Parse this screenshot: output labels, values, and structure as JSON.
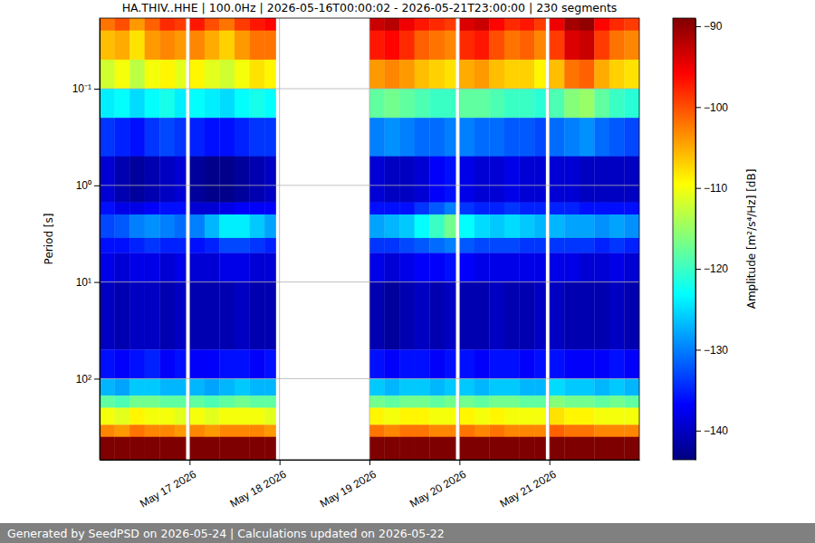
{
  "chart_data": {
    "type": "heatmap",
    "title": "HA.THIV..HHE | 100.0Hz | 2026-05-16T00:00:02 - 2026-05-21T23:00:00 | 230 segments",
    "ylabel": "Period [s]",
    "colorbar_label": "Amplitude [m²/s⁴/Hz] [dB]",
    "footer": "Generated by SeedPSD on 2026-05-24 | Calculations updated on 2026-05-22",
    "log": "y",
    "grid": true,
    "xlim": [
      "2026-05-16T00:00",
      "2026-05-22T00:00"
    ],
    "xticks": [
      {
        "value": "2026-05-17T00:00",
        "label": "May 17 2026"
      },
      {
        "value": "2026-05-18T00:00",
        "label": "May 18 2026"
      },
      {
        "value": "2026-05-19T00:00",
        "label": "May 19 2026"
      },
      {
        "value": "2026-05-20T00:00",
        "label": "May 20 2026"
      },
      {
        "value": "2026-05-21T00:00",
        "label": "May 21 2026"
      }
    ],
    "ylim": [
      0.0186,
      690
    ],
    "yticks": [
      {
        "value": 0.1,
        "label": "10⁻¹"
      },
      {
        "value": 1,
        "label": "10⁰"
      },
      {
        "value": 10,
        "label": "10¹"
      },
      {
        "value": 100,
        "label": "10²"
      }
    ],
    "clim": [
      -143.6,
      -89
    ],
    "cticks": [
      {
        "value": -140,
        "label": "−140"
      },
      {
        "value": -130,
        "label": "−130"
      },
      {
        "value": -120,
        "label": "−120"
      },
      {
        "value": -110,
        "label": "−110"
      },
      {
        "value": -100,
        "label": "−100"
      },
      {
        "value": -90,
        "label": "−90"
      }
    ],
    "x_edges": [
      "2026-05-16T00:00",
      "2026-05-16T04:00",
      "2026-05-16T08:00",
      "2026-05-16T12:00",
      "2026-05-16T16:00",
      "2026-05-16T20:00",
      "2026-05-16T23:00",
      "2026-05-17T00:00",
      "2026-05-17T04:00",
      "2026-05-17T08:00",
      "2026-05-17T12:00",
      "2026-05-17T16:00",
      "2026-05-17T20:00",
      "2026-05-17T23:00",
      "2026-05-19T00:00",
      "2026-05-19T04:00",
      "2026-05-19T08:00",
      "2026-05-19T12:00",
      "2026-05-19T16:00",
      "2026-05-19T20:00",
      "2026-05-19T23:00",
      "2026-05-20T00:00",
      "2026-05-20T04:00",
      "2026-05-20T08:00",
      "2026-05-20T12:00",
      "2026-05-20T16:00",
      "2026-05-20T20:00",
      "2026-05-20T23:00",
      "2026-05-21T00:00",
      "2026-05-21T04:00",
      "2026-05-21T08:00",
      "2026-05-21T12:00",
      "2026-05-21T16:00",
      "2026-05-21T20:00",
      "2026-05-22T00:00"
    ],
    "y_edges": [
      0.0186,
      0.025,
      0.05,
      0.1,
      0.2,
      0.5,
      1.5,
      2,
      3.5,
      5,
      10,
      50,
      100,
      150,
      200,
      300,
      400,
      690
    ],
    "cells": [
      [
        -102,
        -106,
        -112,
        -124,
        -134,
        -139,
        -136,
        -133,
        -136,
        -138,
        -140,
        -136,
        -127,
        -118,
        -110,
        -103,
        -88
      ],
      [
        -100,
        -105,
        -110,
        -123,
        -135,
        -141,
        -138,
        -132,
        -136,
        -139,
        -141,
        -137,
        -128,
        -119,
        -111,
        -104,
        -88
      ],
      [
        -104,
        -108,
        -113,
        -125,
        -136,
        -142,
        -138,
        -130,
        -135,
        -138,
        -140,
        -136,
        -126,
        -117,
        -109,
        -102,
        -88
      ],
      [
        -101,
        -104,
        -110,
        -123,
        -134,
        -141,
        -137,
        -129,
        -134,
        -138,
        -140,
        -135,
        -126,
        -117,
        -110,
        -103,
        -88
      ],
      [
        -98,
        -103,
        -109,
        -122,
        -133,
        -140,
        -136,
        -130,
        -135,
        -139,
        -141,
        -137,
        -127,
        -118,
        -110,
        -103,
        -88
      ],
      [
        -99,
        -104,
        -111,
        -124,
        -134,
        -139,
        -136,
        -131,
        -135,
        -138,
        -140,
        -136,
        -127,
        -118,
        -111,
        -104,
        -88
      ],
      null,
      [
        -97,
        -103,
        -109,
        -123,
        -135,
        -142,
        -139,
        -130,
        -136,
        -139,
        -141,
        -137,
        -127,
        -118,
        -110,
        -103,
        -88
      ],
      [
        -100,
        -105,
        -111,
        -124,
        -136,
        -143,
        -139,
        -127,
        -135,
        -139,
        -141,
        -137,
        -128,
        -119,
        -111,
        -104,
        -88
      ],
      [
        -102,
        -107,
        -112,
        -125,
        -136,
        -143,
        -138,
        -124,
        -133,
        -138,
        -141,
        -136,
        -127,
        -118,
        -110,
        -103,
        -88
      ],
      [
        -99,
        -104,
        -110,
        -123,
        -135,
        -142,
        -137,
        -124,
        -133,
        -138,
        -140,
        -136,
        -126,
        -117,
        -110,
        -103,
        -88
      ],
      [
        -97,
        -102,
        -108,
        -122,
        -134,
        -141,
        -137,
        -126,
        -134,
        -139,
        -141,
        -137,
        -127,
        -118,
        -110,
        -103,
        -88
      ],
      [
        -96,
        -102,
        -109,
        -123,
        -134,
        -140,
        -137,
        -128,
        -135,
        -139,
        -141,
        -136,
        -127,
        -118,
        -111,
        -104,
        -88
      ],
      null,
      [
        -93,
        -97,
        -104,
        -118,
        -130,
        -139,
        -136,
        -128,
        -134,
        -138,
        -141,
        -136,
        -126,
        -117,
        -109,
        -102,
        -88
      ],
      [
        -92,
        -96,
        -103,
        -117,
        -129,
        -140,
        -136,
        -127,
        -134,
        -139,
        -142,
        -137,
        -127,
        -118,
        -110,
        -103,
        -88
      ],
      [
        -95,
        -98,
        -104,
        -118,
        -130,
        -140,
        -136,
        -126,
        -133,
        -138,
        -141,
        -136,
        -126,
        -117,
        -109,
        -102,
        -88
      ],
      [
        -97,
        -101,
        -106,
        -119,
        -131,
        -139,
        -134,
        -123,
        -132,
        -137,
        -140,
        -136,
        -126,
        -117,
        -109,
        -102,
        -88
      ],
      [
        -98,
        -102,
        -107,
        -120,
        -131,
        -137,
        -132,
        -120,
        -131,
        -137,
        -141,
        -137,
        -127,
        -118,
        -110,
        -103,
        -88
      ],
      [
        -99,
        -103,
        -108,
        -120,
        -130,
        -136,
        -130,
        -117,
        -130,
        -136,
        -140,
        -136,
        -126,
        -117,
        -110,
        -103,
        -88
      ],
      null,
      [
        -94,
        -98,
        -105,
        -118,
        -130,
        -138,
        -134,
        -123,
        -132,
        -137,
        -141,
        -136,
        -126,
        -117,
        -109,
        -102,
        -88
      ],
      [
        -93,
        -97,
        -104,
        -118,
        -131,
        -139,
        -135,
        -125,
        -133,
        -138,
        -141,
        -137,
        -127,
        -118,
        -110,
        -103,
        -88
      ],
      [
        -96,
        -100,
        -106,
        -119,
        -131,
        -139,
        -135,
        -126,
        -133,
        -138,
        -140,
        -136,
        -126,
        -117,
        -109,
        -102,
        -88
      ],
      [
        -98,
        -102,
        -107,
        -120,
        -132,
        -138,
        -134,
        -125,
        -133,
        -138,
        -141,
        -136,
        -126,
        -117,
        -110,
        -103,
        -88
      ],
      [
        -97,
        -101,
        -107,
        -120,
        -132,
        -139,
        -135,
        -126,
        -134,
        -138,
        -141,
        -137,
        -127,
        -118,
        -110,
        -103,
        -88
      ],
      [
        -99,
        -103,
        -109,
        -121,
        -133,
        -139,
        -135,
        -127,
        -134,
        -138,
        -140,
        -136,
        -127,
        -118,
        -110,
        -103,
        -88
      ],
      null,
      [
        -95,
        -99,
        -106,
        -119,
        -131,
        -139,
        -135,
        -127,
        -134,
        -138,
        -140,
        -136,
        -125,
        -116,
        -108,
        -101,
        -87
      ],
      [
        -91,
        -94,
        -102,
        -116,
        -130,
        -139,
        -135,
        -128,
        -134,
        -138,
        -141,
        -137,
        -126,
        -117,
        -109,
        -102,
        -87
      ],
      [
        -90,
        -93,
        -101,
        -115,
        -129,
        -140,
        -136,
        -128,
        -134,
        -139,
        -141,
        -137,
        -126,
        -117,
        -109,
        -102,
        -87
      ],
      [
        -96,
        -99,
        -105,
        -118,
        -131,
        -140,
        -136,
        -129,
        -135,
        -139,
        -141,
        -137,
        -127,
        -118,
        -110,
        -103,
        -88
      ],
      [
        -98,
        -102,
        -107,
        -120,
        -132,
        -140,
        -136,
        -128,
        -134,
        -138,
        -140,
        -136,
        -126,
        -117,
        -110,
        -103,
        -88
      ],
      [
        -99,
        -103,
        -108,
        -121,
        -133,
        -140,
        -136,
        -129,
        -135,
        -139,
        -141,
        -137,
        -127,
        -118,
        -110,
        -103,
        -88
      ]
    ]
  }
}
